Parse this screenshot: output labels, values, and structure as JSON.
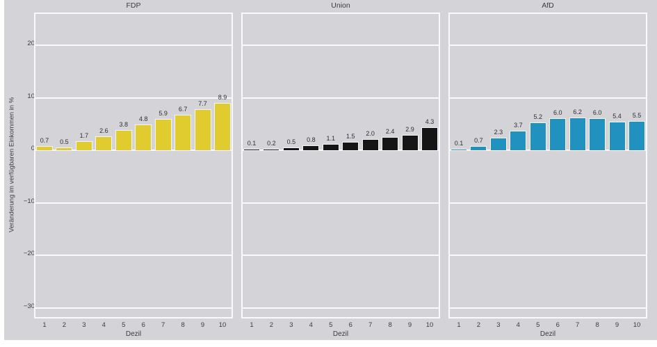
{
  "figure": {
    "background_color": "#d4d3d8",
    "grid_color": "#fafafa",
    "text_color": "#3c3c3c"
  },
  "chart_data": {
    "type": "bar",
    "layout": "three-panel small multiples, shared y-axis",
    "categories": [
      "1",
      "2",
      "3",
      "4",
      "5",
      "6",
      "7",
      "8",
      "9",
      "10"
    ],
    "xlabel": "Dezil",
    "ylabel": "Veränderung im verfügbaren Einkommen in %",
    "yticks": [
      20,
      10,
      0,
      -10,
      -20,
      -30
    ],
    "ytick_labels": [
      "20",
      "10",
      "0",
      "−10",
      "−20",
      "−30"
    ],
    "ylim": [
      -32.5,
      26
    ],
    "grid": true,
    "legend": "none",
    "panels": [
      {
        "title": "FDP",
        "color": "#e1cc30",
        "values": [
          0.7,
          0.5,
          1.7,
          2.6,
          3.8,
          4.8,
          5.9,
          6.7,
          7.7,
          8.9
        ],
        "labels": [
          "0.7",
          "0.5",
          "1.7",
          "2.6",
          "3.8",
          "4.8",
          "5.9",
          "6.7",
          "7.7",
          "8.9"
        ]
      },
      {
        "title": "Union",
        "color": "#151515",
        "values": [
          0.1,
          0.2,
          0.5,
          0.8,
          1.1,
          1.5,
          2.0,
          2.4,
          2.9,
          4.3
        ],
        "labels": [
          "0.1",
          "0.2",
          "0.5",
          "0.8",
          "1.1",
          "1.5",
          "2.0",
          "2.4",
          "2.9",
          "4.3"
        ]
      },
      {
        "title": "AfD",
        "color": "#2191bf",
        "values": [
          0.1,
          0.7,
          2.3,
          3.7,
          5.2,
          6.0,
          6.2,
          6.0,
          5.4,
          5.5
        ],
        "labels": [
          "0.1",
          "0.7",
          "2.3",
          "3.7",
          "5.2",
          "6.0",
          "6.2",
          "6.0",
          "5.4",
          "5.5"
        ]
      }
    ]
  }
}
